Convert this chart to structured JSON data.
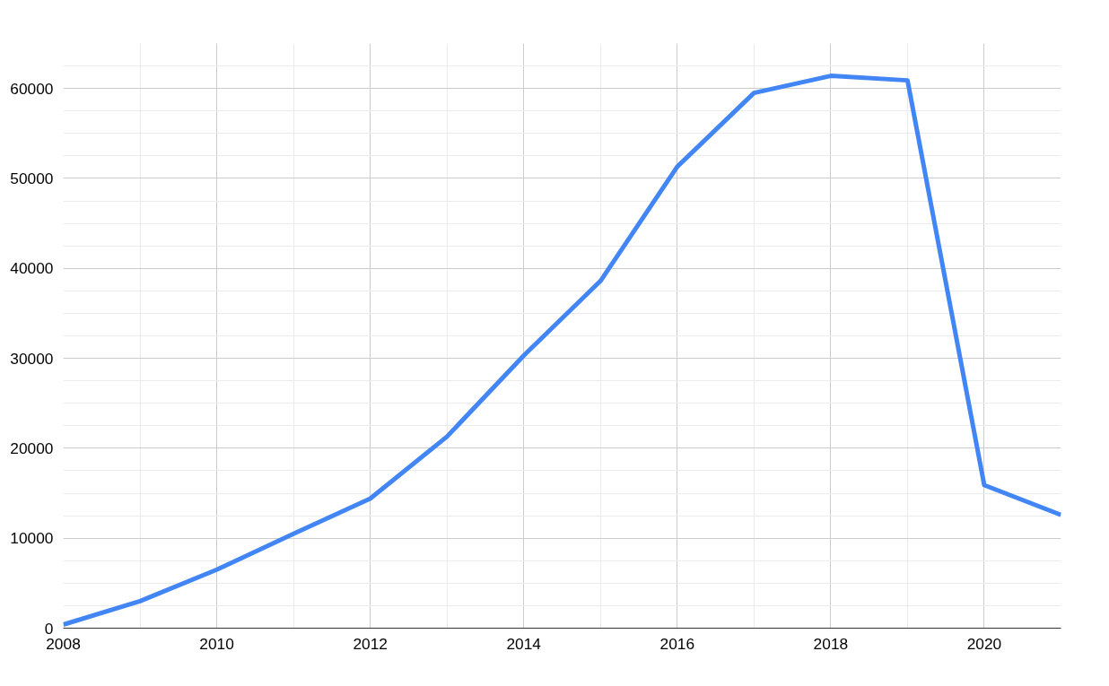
{
  "chart_data": {
    "type": "line",
    "x": [
      2008,
      2009,
      2010,
      2011,
      2012,
      2013,
      2014,
      2015,
      2016,
      2017,
      2018,
      2019,
      2020,
      2021
    ],
    "series": [
      {
        "color": "#4285f4",
        "values": [
          400,
          3000,
          6500,
          10500,
          14400,
          21300,
          30300,
          38600,
          51300,
          59500,
          61400,
          60900,
          15900,
          12600
        ]
      }
    ],
    "xlim": [
      2008,
      2021
    ],
    "xticks": [
      2008,
      2010,
      2012,
      2014,
      2016,
      2018,
      2020
    ],
    "ylim": [
      0,
      65000
    ],
    "yticks": [
      0,
      10000,
      20000,
      30000,
      40000,
      50000,
      60000
    ],
    "grid": true,
    "marker": "none",
    "line_style": "solid"
  }
}
